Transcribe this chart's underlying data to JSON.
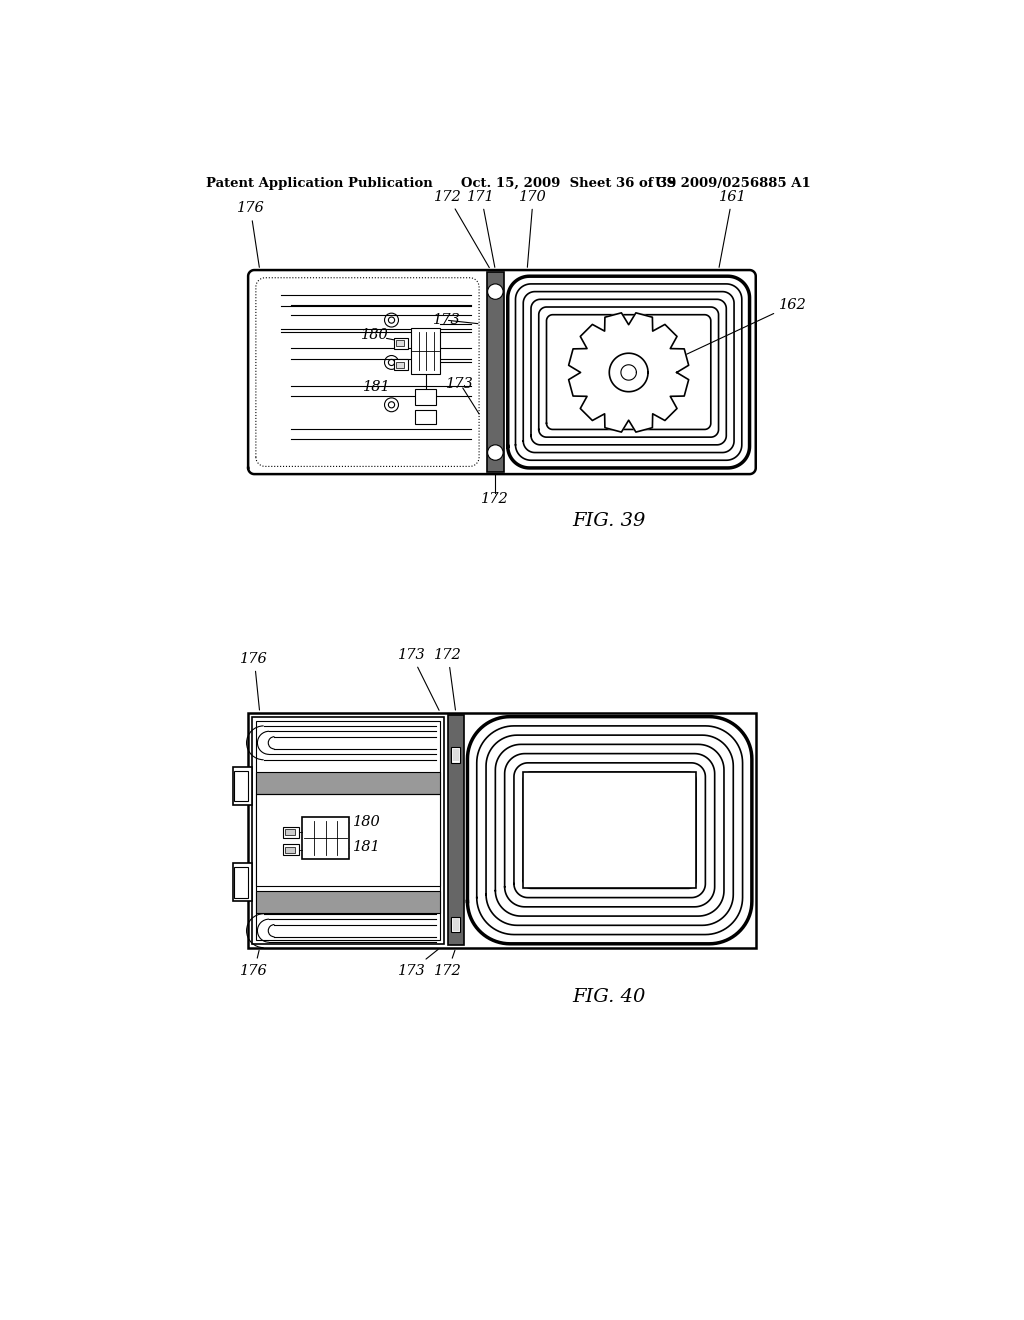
{
  "bg_color": "#ffffff",
  "line_color": "#000000",
  "header_left": "Patent Application Publication",
  "header_mid": "Oct. 15, 2009  Sheet 36 of 39",
  "header_right": "US 2009/0256885 A1",
  "fig39_label": "FIG. 39",
  "fig40_label": "FIG. 40",
  "gray_dark": "#666666",
  "gray_mid": "#999999",
  "gray_light": "#cccccc",
  "gray_hatch": "#aaaaaa"
}
